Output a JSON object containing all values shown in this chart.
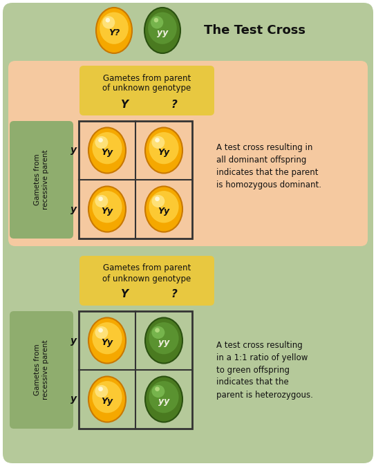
{
  "bg_outer": "#b5c99a",
  "bg_top_panel": "#f5c9a0",
  "bg_bottom_panel": "#b5c99a",
  "gamete_label_bg": "#8fad6e",
  "gamete_header_bg": "#e8c840",
  "title_text": "The Test Cross",
  "gamete_col_label_line1": "Gametes from parent",
  "gamete_col_label_line2": "of unknown genotype",
  "gamete_row_label": "Gametes from\nrecessive parent",
  "col_labels": [
    "Y",
    "?"
  ],
  "row_labels": [
    "y",
    "y"
  ],
  "panel1_text": "A test cross resulting in\nall dominant offspring\nindicates that the parent\nis homozygous dominant.",
  "panel2_text": "A test cross resulting\nin a 1:1 ratio of yellow\nto green offspring\nindicates that the\nparent is heterozygous.",
  "yellow_base": "#f5a800",
  "yellow_light": "#ffd84a",
  "yellow_highlight": "#ffe88a",
  "yellow_edge": "#c87800",
  "green_base": "#4a7a20",
  "green_light": "#6aaa40",
  "green_highlight": "#8acc60",
  "green_edge": "#2a5010",
  "text_dark": "#111111",
  "grid_color": "#333333"
}
